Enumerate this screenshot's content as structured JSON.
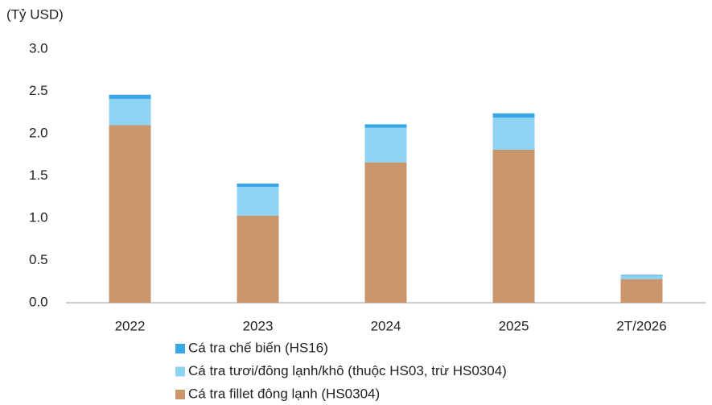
{
  "chart_data": {
    "type": "stacked_bar",
    "y_axis_label": "(Tỷ USD)",
    "categories": [
      "2022",
      "2023",
      "2024",
      "2025",
      "2T/2026"
    ],
    "series": [
      {
        "name": "Cá tra fillet đông lạnh (HS0304)",
        "color": "#c9966b",
        "values": [
          2.1,
          1.03,
          1.66,
          1.81,
          0.28
        ]
      },
      {
        "name": "Cá tra tươi/đông lạnh/khô (thuộc HS03, trừ HS0304)",
        "color": "#8fd3f3",
        "values": [
          0.31,
          0.34,
          0.41,
          0.38,
          0.04
        ]
      },
      {
        "name": "Cá tra chế biến (HS16)",
        "color": "#3aa6e6",
        "values": [
          0.05,
          0.04,
          0.04,
          0.05,
          0.01
        ]
      }
    ],
    "ylim": [
      0,
      3
    ],
    "yticks": [
      {
        "value": 0,
        "label": "0.0"
      },
      0.5,
      {
        "value": 1,
        "label": "1.0"
      },
      1.5,
      {
        "value": 2,
        "label": "2.0"
      },
      2.5,
      {
        "value": 3,
        "label": "3.0"
      }
    ],
    "grid": false
  }
}
